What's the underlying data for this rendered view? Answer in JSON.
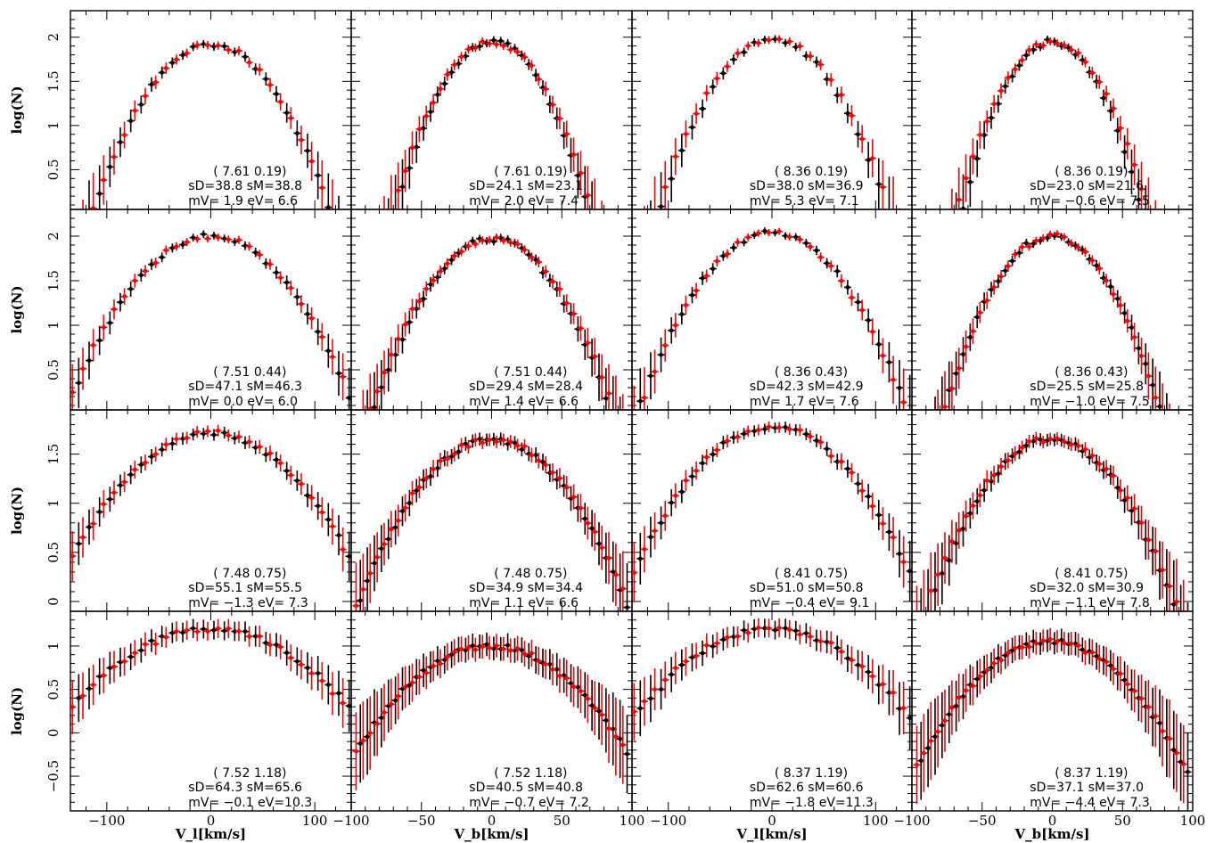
{
  "figure": {
    "ylabel": "log(N)",
    "xlabels": [
      "V_l[km/s]",
      "V_b[km/s]",
      "V_l[km/s]",
      "V_b[km/s]"
    ],
    "series_colors": {
      "model": "#000000",
      "data": "#ff0000"
    }
  },
  "chart_data": [
    {
      "type": "scatter",
      "row": 0,
      "col": 0,
      "xlim": [
        -135,
        135
      ],
      "ylim": [
        0.05,
        2.3
      ],
      "yticks": [
        0.5,
        1,
        1.5,
        2
      ],
      "sigma_obs": 38.8,
      "sigma_mod": 38.8,
      "mean_v": 1.9,
      "err_v": 6.6,
      "ann": [
        "( 7.61  0.19)",
        "sD=38.8   sM=38.8",
        "mV=   1.9   eV=  6.6"
      ],
      "peak": 1.92
    },
    {
      "type": "scatter",
      "row": 0,
      "col": 1,
      "xlim": [
        -100,
        100
      ],
      "ylim": [
        0.05,
        2.3
      ],
      "yticks": [
        0.5,
        1,
        1.5,
        2
      ],
      "sigma_obs": 24.1,
      "sigma_mod": 23.1,
      "mean_v": 2.0,
      "err_v": 7.4,
      "ann": [
        "( 7.61  0.19)",
        "sD=24.1   sM=23.1",
        "mV=   2.0   eV=  7.4"
      ],
      "peak": 1.95
    },
    {
      "type": "scatter",
      "row": 0,
      "col": 2,
      "xlim": [
        -135,
        135
      ],
      "ylim": [
        0.05,
        2.3
      ],
      "yticks": [
        0.5,
        1,
        1.5,
        2
      ],
      "sigma_obs": 38.0,
      "sigma_mod": 36.9,
      "mean_v": 5.3,
      "err_v": 7.1,
      "ann": [
        "( 8.36  0.19)",
        "sD=38.0   sM=36.9",
        "mV=   5.3   eV=  7.1"
      ],
      "peak": 1.97
    },
    {
      "type": "scatter",
      "row": 0,
      "col": 3,
      "xlim": [
        -100,
        100
      ],
      "ylim": [
        0.05,
        2.3
      ],
      "yticks": [
        0.5,
        1,
        1.5,
        2
      ],
      "sigma_obs": 23.0,
      "sigma_mod": 21.6,
      "mean_v": -0.6,
      "err_v": 7.5,
      "ann": [
        "( 8.36  0.19)",
        "sD=23.0   sM=21.6",
        "mV= −0.6   eV=  7.5"
      ],
      "peak": 1.95
    },
    {
      "type": "scatter",
      "row": 1,
      "col": 0,
      "xlim": [
        -135,
        135
      ],
      "ylim": [
        0.05,
        2.3
      ],
      "yticks": [
        0.5,
        1,
        1.5,
        2
      ],
      "sigma_obs": 47.1,
      "sigma_mod": 46.3,
      "mean_v": 0.0,
      "err_v": 6.0,
      "ann": [
        "( 7.51  0.44)",
        "sD=47.1   sM=46.3",
        "mV=   0.0   eV=  6.0"
      ],
      "peak": 2.0
    },
    {
      "type": "scatter",
      "row": 1,
      "col": 1,
      "xlim": [
        -100,
        100
      ],
      "ylim": [
        0.05,
        2.3
      ],
      "yticks": [
        0.5,
        1,
        1.5,
        2
      ],
      "sigma_obs": 29.4,
      "sigma_mod": 28.4,
      "mean_v": 1.4,
      "err_v": 6.6,
      "ann": [
        "( 7.51  0.44)",
        "sD=29.4   sM=28.4",
        "mV=   1.4   eV=  6.6"
      ],
      "peak": 1.97
    },
    {
      "type": "scatter",
      "row": 1,
      "col": 2,
      "xlim": [
        -135,
        135
      ],
      "ylim": [
        0.05,
        2.3
      ],
      "yticks": [
        0.5,
        1,
        1.5,
        2
      ],
      "sigma_obs": 42.3,
      "sigma_mod": 42.9,
      "mean_v": 1.7,
      "err_v": 7.6,
      "ann": [
        "( 8.36  0.43)",
        "sD=42.3   sM=42.9",
        "mV=   1.7   eV=  7.6"
      ],
      "peak": 2.05
    },
    {
      "type": "scatter",
      "row": 1,
      "col": 3,
      "xlim": [
        -100,
        100
      ],
      "ylim": [
        0.05,
        2.3
      ],
      "yticks": [
        0.5,
        1,
        1.5,
        2
      ],
      "sigma_obs": 25.5,
      "sigma_mod": 25.8,
      "mean_v": -1.0,
      "err_v": 7.5,
      "ann": [
        "( 8.36  0.43)",
        "sD=25.5   sM=25.8",
        "mV= −1.0   eV=  7.5"
      ],
      "peak": 2.0
    },
    {
      "type": "scatter",
      "row": 2,
      "col": 0,
      "xlim": [
        -135,
        135
      ],
      "ylim": [
        -0.1,
        1.95
      ],
      "yticks": [
        0,
        0.5,
        1,
        1.5
      ],
      "sigma_obs": 55.1,
      "sigma_mod": 55.5,
      "mean_v": -1.3,
      "err_v": 7.3,
      "ann": [
        "( 7.48  0.75)",
        "sD=55.1   sM=55.5",
        "mV= −1.3   eV=  7.3"
      ],
      "peak": 1.72
    },
    {
      "type": "scatter",
      "row": 2,
      "col": 1,
      "xlim": [
        -100,
        100
      ],
      "ylim": [
        -0.1,
        1.95
      ],
      "yticks": [
        0,
        0.5,
        1,
        1.5
      ],
      "sigma_obs": 34.9,
      "sigma_mod": 34.4,
      "mean_v": 1.1,
      "err_v": 6.6,
      "ann": [
        "( 7.48  0.75)",
        "sD=34.9   sM=34.4",
        "mV=   1.1   eV=  6.6"
      ],
      "peak": 1.65
    },
    {
      "type": "scatter",
      "row": 2,
      "col": 2,
      "xlim": [
        -135,
        135
      ],
      "ylim": [
        -0.1,
        1.95
      ],
      "yticks": [
        0,
        0.5,
        1,
        1.5
      ],
      "sigma_obs": 51.0,
      "sigma_mod": 50.8,
      "mean_v": -0.4,
      "err_v": 9.1,
      "ann": [
        "( 8.41  0.75)",
        "sD=51.0   sM=50.8",
        "mV= −0.4   eV=  9.1"
      ],
      "peak": 1.78
    },
    {
      "type": "scatter",
      "row": 2,
      "col": 3,
      "xlim": [
        -100,
        100
      ],
      "ylim": [
        -0.1,
        1.95
      ],
      "yticks": [
        0,
        0.5,
        1,
        1.5
      ],
      "sigma_obs": 32.0,
      "sigma_mod": 30.9,
      "mean_v": -1.1,
      "err_v": 7.8,
      "ann": [
        "( 8.41  0.75)",
        "sD=32.0   sM=30.9",
        "mV= −1.1   eV=  7.8"
      ],
      "peak": 1.66
    },
    {
      "type": "scatter",
      "row": 3,
      "col": 0,
      "xlim": [
        -135,
        135
      ],
      "ylim": [
        -0.9,
        1.4
      ],
      "yticks": [
        -0.5,
        0,
        0.5,
        1
      ],
      "xticks": [
        -100,
        0,
        100
      ],
      "sigma_obs": 64.3,
      "sigma_mod": 65.6,
      "mean_v": -0.1,
      "err_v": 10.3,
      "ann": [
        "( 7.52  1.18)",
        "sD=64.3   sM=65.6",
        "mV= −0.1   eV=10.3"
      ],
      "peak": 1.2
    },
    {
      "type": "scatter",
      "row": 3,
      "col": 1,
      "xlim": [
        -100,
        100
      ],
      "ylim": [
        -0.9,
        1.4
      ],
      "yticks": [
        -0.5,
        0,
        0.5,
        1
      ],
      "xticks": [
        -100,
        -50,
        0,
        50,
        100
      ],
      "sigma_obs": 40.5,
      "sigma_mod": 40.8,
      "mean_v": -0.7,
      "err_v": 7.2,
      "ann": [
        "( 7.52  1.18)",
        "sD=40.5   sM=40.8",
        "mV= −0.7   eV=  7.2"
      ],
      "peak": 1.0
    },
    {
      "type": "scatter",
      "row": 3,
      "col": 2,
      "xlim": [
        -135,
        135
      ],
      "ylim": [
        -0.9,
        1.4
      ],
      "yticks": [
        -0.5,
        0,
        0.5,
        1
      ],
      "xticks": [
        -100,
        0,
        100
      ],
      "sigma_obs": 62.6,
      "sigma_mod": 60.6,
      "mean_v": -1.8,
      "err_v": 11.3,
      "ann": [
        "( 8.37  1.19)",
        "sD=62.6   sM=60.6",
        "mV= −1.8   eV=11.3"
      ],
      "peak": 1.2
    },
    {
      "type": "scatter",
      "row": 3,
      "col": 3,
      "xlim": [
        -100,
        100
      ],
      "ylim": [
        -0.9,
        1.4
      ],
      "yticks": [
        -0.5,
        0,
        0.5,
        1
      ],
      "xticks": [
        -100,
        -50,
        0,
        50,
        100
      ],
      "sigma_obs": 37.1,
      "sigma_mod": 37.0,
      "mean_v": -4.4,
      "err_v": 7.3,
      "ann": [
        "( 8.37  1.19)",
        "sD=37.1   sM=37.0",
        "mV= −4.4   eV=  7.3"
      ],
      "peak": 1.05
    }
  ]
}
